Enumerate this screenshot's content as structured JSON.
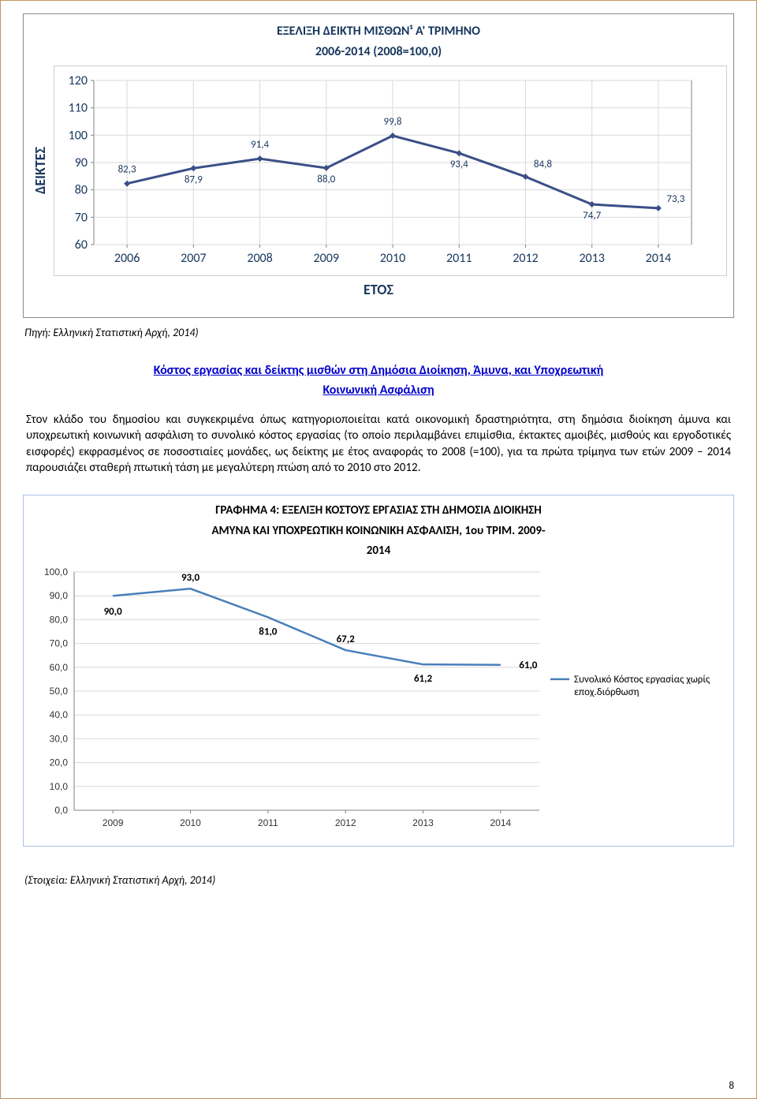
{
  "page_number": "8",
  "chart1": {
    "type": "line",
    "title_l1": "ΕΞΕΛΙΞΗ ΔΕΙΚΤΗ ΜΙΣΘΩΝ¹ Α' ΤΡΙΜΗΝΟ",
    "title_l2": "2006-2014 (2008=100,0)",
    "ylabel": "ΔΕΙΚΤΕΣ",
    "xlabel": "ΕΤΟΣ",
    "categories": [
      "2006",
      "2007",
      "2008",
      "2009",
      "2010",
      "2011",
      "2012",
      "2013",
      "2014"
    ],
    "values": [
      82.3,
      87.9,
      91.4,
      88.0,
      99.8,
      93.4,
      84.8,
      74.7,
      73.3
    ],
    "labels": [
      "82,3",
      "87,9",
      "91,4",
      "88,0",
      "99,8",
      "93,4",
      "84,8",
      "74,7",
      "73,3"
    ],
    "ylim": [
      60,
      120
    ],
    "ytick_step": 10,
    "yticks": [
      "60",
      "70",
      "80",
      "90",
      "100",
      "110",
      "120"
    ],
    "line_color": "#3b4f87",
    "line_width": 3,
    "marker": "diamond",
    "marker_size": 8,
    "marker_fill": "#3b4f87",
    "grid_color": "#d9d9d9",
    "plot_bg": "#ffffff",
    "axis_color": "#808080",
    "title_color": "#17365d"
  },
  "source1": "Πηγή: Ελληνική Στατιστική Αρχή, 2014)",
  "section_link_l1": "Κόστος εργασίας και δείκτης μισθών στη Δημόσια Διοίκηση, Άμυνα, και Υποχρεωτική",
  "section_link_l2": "Κοινωνική Ασφάλιση",
  "body_text": "Στον κλάδο του δημοσίου και συγκεκριμένα όπως κατηγοριοποιείται κατά οικονομική δραστηριότητα, στη δημόσια διοίκηση άμυνα και υποχρεωτική κοινωνική ασφάλιση το συνολικό κόστος εργασίας (το οποίο περιλαμβάνει επιμίσθια, έκτακτες αμοιβές, μισθούς και εργοδοτικές εισφορές) εκφρασμένος σε ποσοστιαίες μονάδες, ως δείκτης με έτος αναφοράς το 2008 (=100), για τα πρώτα τρίμηνα των ετών 2009 – 2014 παρουσιάζει σταθερή πτωτική τάση με μεγαλύτερη πτώση από το 2010 στο 2012.",
  "chart2": {
    "type": "line",
    "title_l1": "ΓΡΑΦΗΜΑ 4: ΕΞΕΛΙΞΗ ΚΟΣΤΟΥΣ ΕΡΓΑΣΙΑΣ ΣΤΗ ΔΗΜΟΣΙΑ ΔΙΟΙΚΗΣΗ",
    "title_l2": "ΑΜΥΝΑ ΚΑΙ ΥΠΟΧΡΕΩΤΙΚΗ ΚΟΙΝΩΝΙΚΗ ΑΣΦΑΛΙΣΗ, 1ου ΤΡΙΜ. 2009-",
    "title_l3": "2014",
    "categories": [
      "2009",
      "2010",
      "2011",
      "2012",
      "2013",
      "2014"
    ],
    "values": [
      90.0,
      93.0,
      81.0,
      67.2,
      61.2,
      61.0
    ],
    "labels": [
      "90,0",
      "93,0",
      "81,0",
      "67,2",
      "61,2",
      "61,0"
    ],
    "ylim": [
      0,
      100
    ],
    "ytick_step": 10,
    "yticks": [
      "0,0",
      "10,0",
      "20,0",
      "30,0",
      "40,0",
      "50,0",
      "60,0",
      "70,0",
      "80,0",
      "90,0",
      "100,0"
    ],
    "line_color": "#4a7ebb",
    "line_width": 2.5,
    "grid_color": "#d9d9d9",
    "plot_bg": "#ffffff",
    "frame_border": "#a9c0e6",
    "axis_color": "#808080",
    "legend_label_l1": "Συνολικό Κόστος εργασίας χωρίς",
    "legend_label_l2": "εποχ.διόρθωση"
  },
  "source2": "(Στοιχεία: Ελληνική Στατιστική Αρχή, 2014)"
}
